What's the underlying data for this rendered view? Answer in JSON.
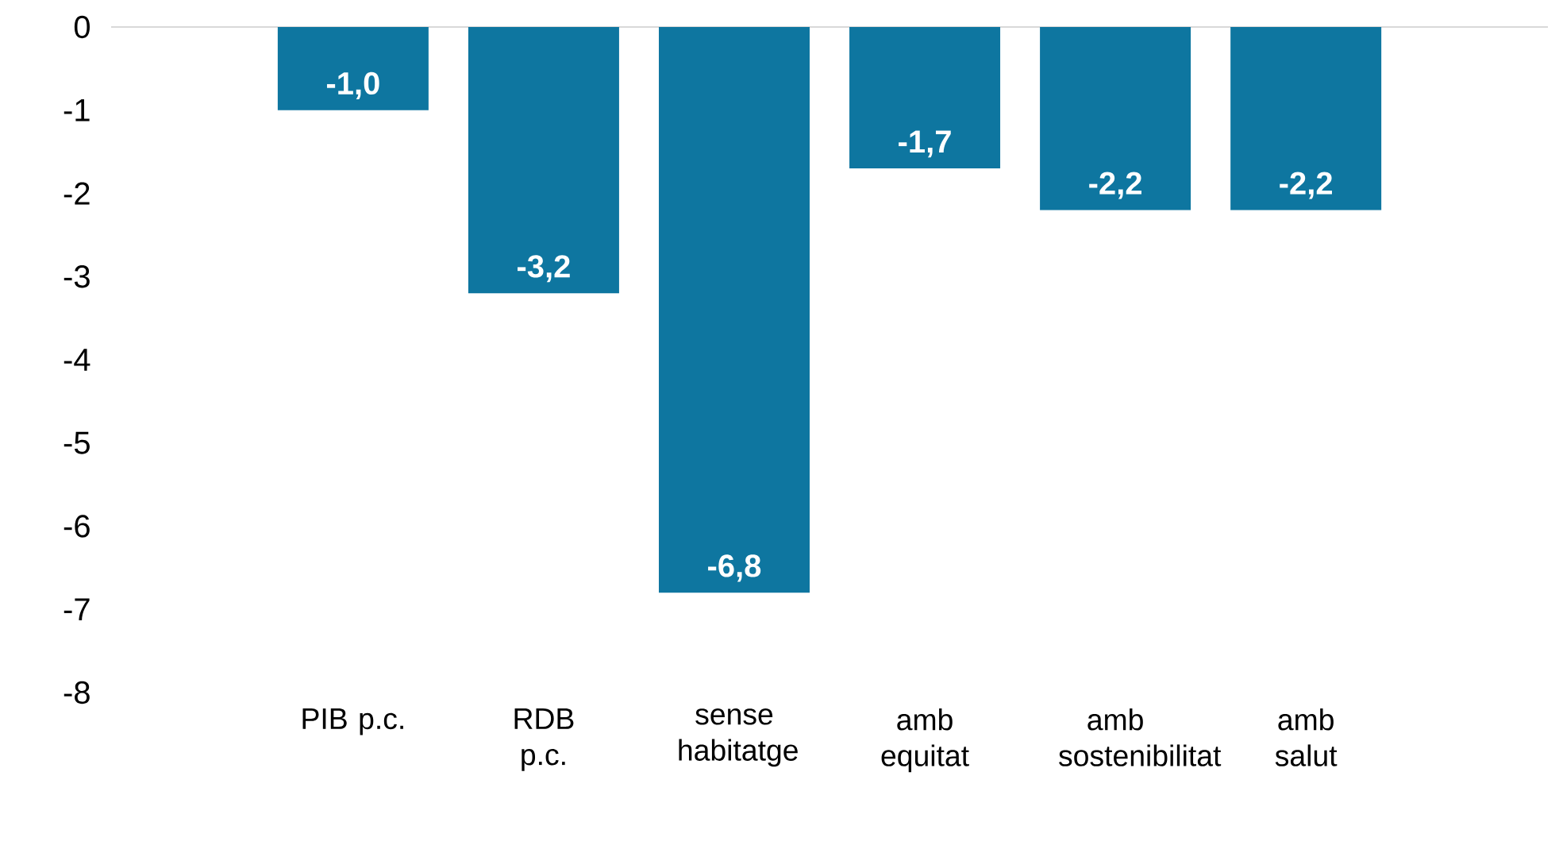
{
  "chart_data": {
    "type": "bar",
    "categories": [
      "PIB p.c.",
      "RDB p.c.",
      "sense habitatge",
      "amb equitat",
      "amb sostenibilitat",
      "amb salut"
    ],
    "values": [
      -1.0,
      -3.2,
      -6.8,
      -1.7,
      -2.2,
      -2.2
    ],
    "value_labels": [
      "-1,0",
      "-3,2",
      "-6,8",
      "-1,7",
      "-2,2",
      "-2,2"
    ],
    "color": "#0e76a0",
    "ylim": [
      -8,
      0
    ],
    "yticks": [
      0,
      -1,
      -2,
      -3,
      -4,
      -5,
      -6,
      -7,
      -8
    ],
    "ref_lines": [
      {
        "axis": "y",
        "value": 0,
        "color": "#d9d9d9"
      }
    ]
  }
}
